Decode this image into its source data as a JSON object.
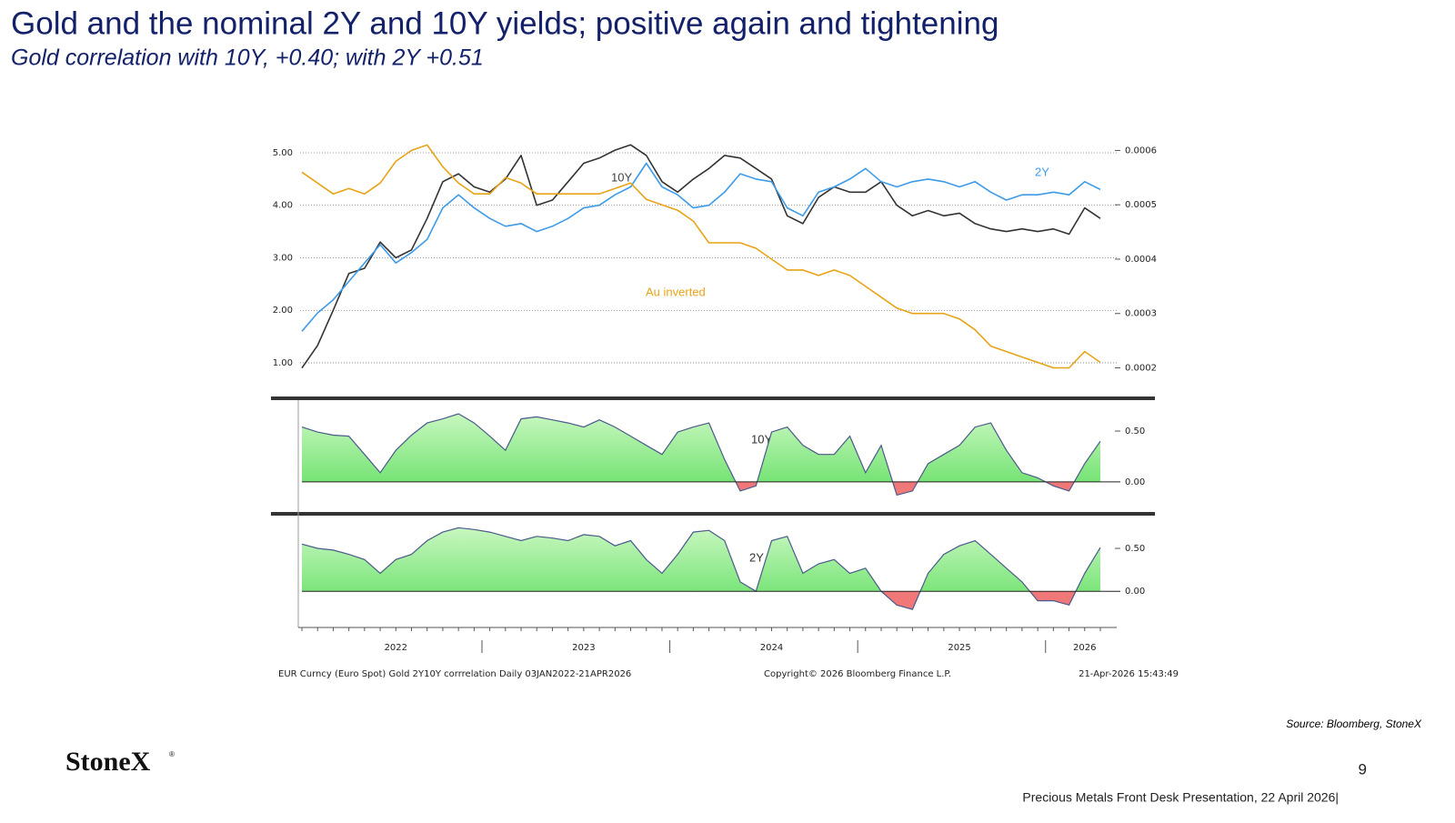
{
  "slide": {
    "title": "Gold and the nominal 2Y and 10Y yields; positive again and tightening",
    "subtitle": "Gold correlation with 10Y, +0.40; with 2Y +0.51",
    "source": "Source: Bloomberg, StoneX",
    "logo": "StoneX",
    "logo_mark": "®",
    "page_number": "9",
    "footer": "Precious Metals Front Desk Presentation, 22 April 2026|"
  },
  "chart_footer": {
    "description": "EUR Curncy (Euro Spot) Gold 2Y10Y corrrelation Daily 03JAN2022-21APR2026",
    "copyright": "Copyright© 2026 Bloomberg Finance L.P.",
    "timestamp": "21-Apr-2026 15:43:49"
  },
  "chart_data": [
    {
      "type": "line",
      "grid": true,
      "ylim": [
        0.8,
        5.2
      ],
      "yticks": [
        {
          "value": 1,
          "label": "1.00"
        },
        {
          "value": 2,
          "label": "2.00"
        },
        {
          "value": 3,
          "label": "3.00"
        },
        {
          "value": 4,
          "label": "4.00"
        },
        {
          "value": 5,
          "label": "5.00"
        }
      ],
      "y2lim": [
        0.00019,
        0.000615
      ],
      "y2ticks": [
        0.0002,
        0.0003,
        0.0004,
        0.0005,
        0.0006
      ],
      "series": [
        {
          "name": "10Y",
          "color": "#333333",
          "values": [
            0.9,
            1.33,
            2.0,
            2.7,
            2.8,
            3.3,
            3.0,
            3.15,
            3.75,
            4.45,
            4.6,
            4.35,
            4.25,
            4.5,
            4.95,
            4.0,
            4.1,
            4.45,
            4.8,
            4.9,
            5.05,
            5.15,
            4.95,
            4.45,
            4.25,
            4.5,
            4.7,
            4.95,
            4.9,
            4.7,
            4.5,
            3.8,
            3.65,
            4.15,
            4.35,
            4.25,
            4.25,
            4.45,
            4.0,
            3.8,
            3.9,
            3.8,
            3.85,
            3.65,
            3.55,
            3.5,
            3.55,
            3.5,
            3.55,
            3.45,
            3.95,
            3.75
          ]
        },
        {
          "name": "2Y",
          "color": "#3d9be9",
          "values": [
            1.6,
            1.95,
            2.2,
            2.55,
            2.9,
            3.25,
            2.9,
            3.1,
            3.35,
            3.95,
            4.2,
            3.95,
            3.75,
            3.6,
            3.65,
            3.5,
            3.6,
            3.75,
            3.95,
            4.0,
            4.2,
            4.35,
            4.8,
            4.35,
            4.2,
            3.95,
            4.0,
            4.25,
            4.6,
            4.5,
            4.45,
            3.95,
            3.8,
            4.25,
            4.35,
            4.5,
            4.7,
            4.45,
            4.35,
            4.45,
            4.5,
            4.45,
            4.35,
            4.45,
            4.25,
            4.1,
            4.2,
            4.2,
            4.25,
            4.2,
            4.45,
            4.3
          ]
        },
        {
          "name": "Au inverted",
          "color": "#e8a317",
          "axis": "y2",
          "values": [
            0.00056,
            0.00054,
            0.00052,
            0.00053,
            0.00052,
            0.00054,
            0.00058,
            0.0006,
            0.00061,
            0.00057,
            0.00054,
            0.00052,
            0.00052,
            0.00055,
            0.00054,
            0.00052,
            0.00052,
            0.00052,
            0.00052,
            0.00052,
            0.00053,
            0.00054,
            0.00051,
            0.0005,
            0.00049,
            0.00047,
            0.00043,
            0.00043,
            0.00043,
            0.00042,
            0.0004,
            0.00038,
            0.00038,
            0.00037,
            0.00038,
            0.00037,
            0.00035,
            0.00033,
            0.00031,
            0.0003,
            0.0003,
            0.0003,
            0.00029,
            0.00027,
            0.00024,
            0.00023,
            0.00022,
            0.00021,
            0.0002,
            0.0002,
            0.00023,
            0.00021
          ]
        }
      ]
    },
    {
      "type": "area",
      "title": "10Y",
      "line_color": "#4a5a8a",
      "positive_color": "#66e066",
      "negative_color": "#f07878",
      "ylim": [
        -0.27,
        0.76
      ],
      "yticks": [
        {
          "value": 0,
          "label": "0.00"
        },
        {
          "value": 0.5,
          "label": "0.50"
        }
      ],
      "values": [
        0.54,
        0.49,
        0.46,
        0.45,
        0.27,
        0.09,
        0.31,
        0.46,
        0.58,
        0.62,
        0.67,
        0.58,
        0.45,
        0.31,
        0.62,
        0.64,
        0.61,
        0.58,
        0.54,
        0.61,
        0.54,
        0.45,
        0.36,
        0.27,
        0.49,
        0.54,
        0.58,
        0.22,
        -0.09,
        -0.04,
        0.49,
        0.54,
        0.36,
        0.27,
        0.27,
        0.45,
        0.09,
        0.36,
        -0.13,
        -0.09,
        0.18,
        0.27,
        0.36,
        0.54,
        0.58,
        0.31,
        0.09,
        0.04,
        -0.04,
        -0.09,
        0.18,
        0.4
      ]
    },
    {
      "type": "area",
      "title": "2Y",
      "line_color": "#4a5a8a",
      "positive_color": "#66e066",
      "negative_color": "#f07878",
      "ylim": [
        -0.4,
        0.85
      ],
      "yticks": [
        {
          "value": 0,
          "label": "0.00"
        },
        {
          "value": 0.5,
          "label": "0.50"
        }
      ],
      "categories": [
        null,
        null,
        null,
        null,
        null,
        null,
        "2022",
        null,
        null,
        null,
        null,
        null,
        null,
        null,
        null,
        null,
        null,
        null,
        "2023",
        null,
        null,
        null,
        null,
        null,
        null,
        null,
        null,
        null,
        null,
        null,
        "2024",
        null,
        null,
        null,
        null,
        null,
        null,
        null,
        null,
        null,
        null,
        null,
        "2025",
        null,
        null,
        null,
        null,
        null,
        null,
        null,
        "2026",
        null
      ],
      "values": [
        0.55,
        0.5,
        0.48,
        0.43,
        0.37,
        0.21,
        0.37,
        0.43,
        0.59,
        0.69,
        0.74,
        0.72,
        0.69,
        0.64,
        0.59,
        0.64,
        0.62,
        0.59,
        0.66,
        0.64,
        0.53,
        0.59,
        0.37,
        0.21,
        0.43,
        0.69,
        0.71,
        0.59,
        0.11,
        0.0,
        0.59,
        0.64,
        0.21,
        0.32,
        0.37,
        0.21,
        0.27,
        0.0,
        -0.16,
        -0.21,
        0.21,
        0.43,
        0.53,
        0.59,
        0.43,
        0.27,
        0.11,
        -0.11,
        -0.11,
        -0.16,
        0.21,
        0.51
      ]
    }
  ]
}
